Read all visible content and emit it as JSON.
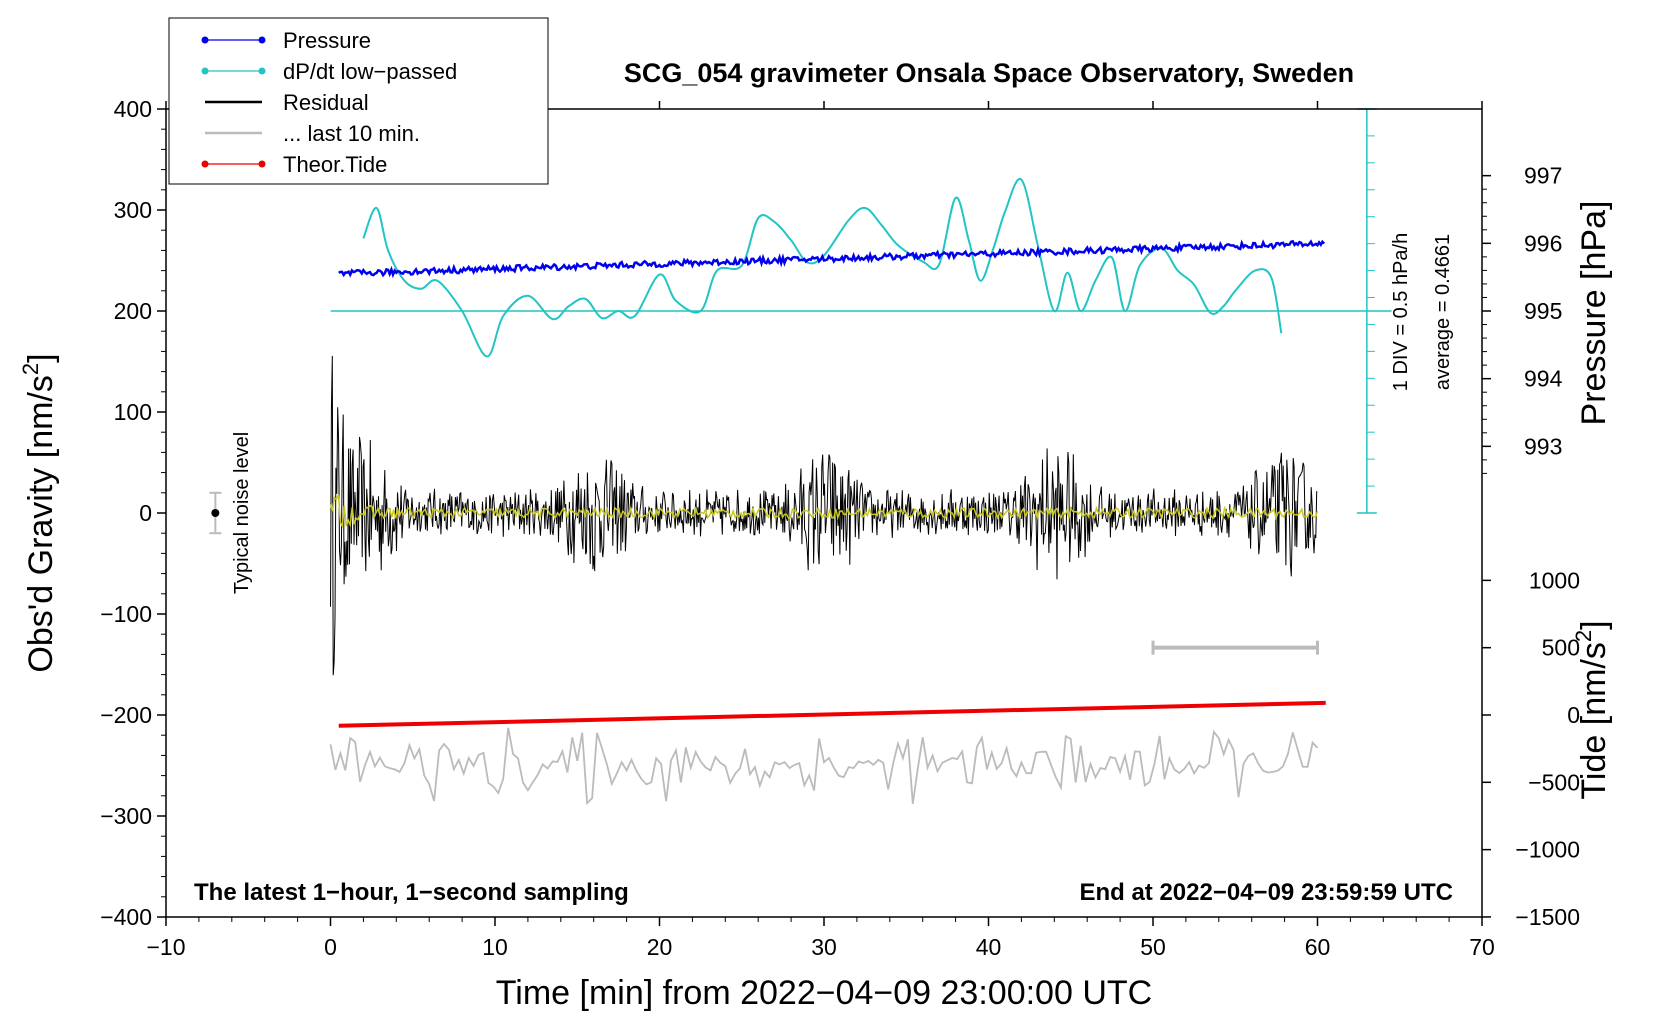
{
  "colors": {
    "pressure": "#0000ee",
    "dpdt": "#22c4c4",
    "residual": "#000000",
    "last10": "#bbbbbb",
    "tide": "#ee0000",
    "noise_overlay": "#c8c820"
  },
  "chart_data": {
    "type": "line",
    "title": "SCG_054 gravimeter Onsala Space Observatory, Sweden",
    "xlabel": "Time [min] from 2022−04−09 23:00:00 UTC",
    "ylabel_left": "Obs'd Gravity [nm/s",
    "ylabel_left_sup": "2",
    "ylabel_left_end": "]",
    "ylabel_pressure": "Pressure [hPa]",
    "ylabel_tide": "Tide [nm/s",
    "ylabel_tide_sup": "2",
    "ylabel_tide_end": "]",
    "xlim": [
      -10,
      70
    ],
    "ylim": [
      -400,
      400
    ],
    "x_ticks": [
      -10,
      0,
      10,
      20,
      30,
      40,
      50,
      60,
      70
    ],
    "x_tick_labels": [
      "−10",
      "0",
      "10",
      "20",
      "30",
      "40",
      "50",
      "60",
      "70"
    ],
    "y_ticks": [
      400,
      300,
      200,
      100,
      0,
      -100,
      -200,
      -300,
      -400
    ],
    "y_tick_labels": [
      "400",
      "300",
      "200",
      "100",
      "0",
      "−100",
      "−200",
      "−300",
      "−400"
    ],
    "pressure_axis": {
      "ticks": [
        997,
        996,
        995,
        994,
        993
      ],
      "tick_labels": [
        "997",
        "996",
        "995",
        "994",
        "993"
      ],
      "gravity_at_995": 200,
      "nm_per_hpa": 67
    },
    "tide_axis": {
      "ticks": [
        1000,
        500,
        0,
        -500,
        -1000,
        -1500
      ],
      "tick_labels": [
        "1000",
        "500",
        "0",
        "−500",
        "−1000",
        "−1500"
      ],
      "gravity_at_zero": -200,
      "nm_per_unit": 0.1333
    },
    "legend": [
      {
        "label": "Pressure",
        "key": "pressure",
        "marker": true
      },
      {
        "label": "dP/dt low−passed",
        "key": "dpdt",
        "marker": true
      },
      {
        "label": "Residual",
        "key": "residual",
        "marker": false
      },
      {
        "label": "... last 10 min.",
        "key": "last10",
        "marker": false
      },
      {
        "label": "Theor.Tide",
        "key": "tide",
        "marker": true
      }
    ],
    "series": [
      {
        "name": "Pressure",
        "unit": "hPa",
        "start_x": 0.5,
        "end_x": 60.5,
        "start": 995.55,
        "end": 996.0
      },
      {
        "name": "dP/dt low-passed",
        "baseline_gravity": 200,
        "x": [
          2,
          2.8,
          3.5,
          4.5,
          5.5,
          6.5,
          8,
          9.5,
          10.5,
          12,
          13.5,
          14.5,
          15.5,
          16.5,
          17.5,
          18.5,
          20,
          21,
          22.5,
          23.5,
          25,
          26,
          27,
          28,
          29,
          30,
          31.5,
          32.5,
          33.5,
          34.5,
          36,
          37,
          38,
          38.8,
          39.5,
          40.3,
          41,
          42,
          43,
          44,
          44.8,
          45.6,
          46.5,
          47.5,
          48.3,
          49.2,
          50.5,
          51.5,
          52.5,
          53.5,
          54.3,
          55,
          56.2,
          57.2,
          57.8
        ],
        "y": [
          272,
          302,
          260,
          230,
          222,
          230,
          200,
          155,
          195,
          215,
          192,
          205,
          212,
          193,
          200,
          195,
          236,
          210,
          200,
          240,
          245,
          292,
          288,
          270,
          248,
          255,
          290,
          302,
          285,
          265,
          249,
          246,
          312,
          270,
          230,
          262,
          298,
          330,
          265,
          200,
          238,
          200,
          230,
          253,
          200,
          245,
          262,
          240,
          226,
          198,
          205,
          220,
          240,
          233,
          178
        ]
      },
      {
        "name": "Residual",
        "envelope_start": 170,
        "envelope_end": 25
      },
      {
        "name": "... last 10 min.",
        "center_gravity": -250,
        "amplitude": 40
      },
      {
        "name": "Theor.Tide",
        "unit": "nm/s2",
        "start_x": 0.5,
        "end_x": 60.5,
        "start": -80,
        "end": 90
      }
    ],
    "noise_level": {
      "label": "Typical noise level",
      "x": -7,
      "y": 0,
      "err": 20
    },
    "scale_bar": {
      "x_start": 50,
      "x_end": 60,
      "tide_value": 500
    },
    "div_annotation": "1 DIV = 0.5 hPa/h",
    "avg_annotation": "average = 0.4661",
    "note_left": "The latest 1−hour, 1−second sampling",
    "note_right": "End at 2022−04−09 23:59:59 UTC"
  }
}
